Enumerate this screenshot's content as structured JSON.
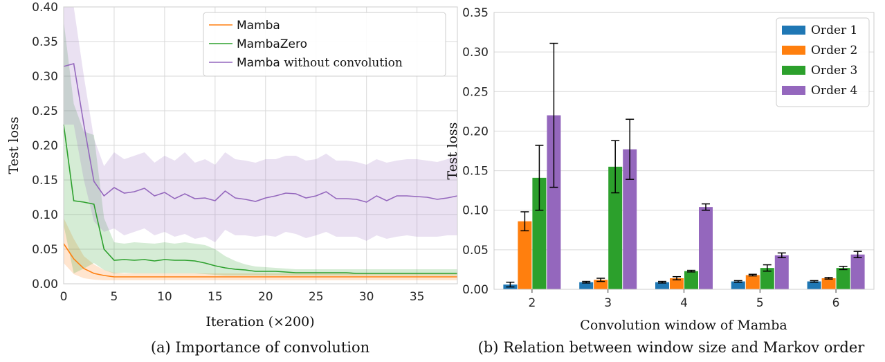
{
  "chart_data": [
    {
      "type": "line",
      "caption": "(a) Importance of convolution",
      "xlabel": "Iteration (×200)",
      "ylabel": "Test loss",
      "xlim": [
        0,
        39
      ],
      "ylim": [
        0,
        0.4
      ],
      "xticks": [
        0,
        5,
        10,
        15,
        20,
        25,
        30,
        35
      ],
      "yticks": [
        0.0,
        0.05,
        0.1,
        0.15,
        0.2,
        0.25,
        0.3,
        0.35,
        0.4
      ],
      "grid": true,
      "legend_position": "top-right",
      "series": [
        {
          "name": "Mamba",
          "name_prefix": "Mamba",
          "name_suffix": "",
          "color": "#ff7f0e",
          "x": [
            0,
            1,
            2,
            3,
            4,
            5,
            6,
            7,
            8,
            9,
            10,
            11,
            12,
            13,
            14,
            15,
            16,
            17,
            18,
            19,
            20,
            21,
            22,
            23,
            24,
            25,
            26,
            27,
            28,
            29,
            30,
            31,
            32,
            33,
            34,
            35,
            36,
            37,
            38,
            39
          ],
          "y": [
            0.058,
            0.036,
            0.022,
            0.015,
            0.012,
            0.01,
            0.01,
            0.01,
            0.01,
            0.01,
            0.01,
            0.01,
            0.01,
            0.01,
            0.01,
            0.01,
            0.01,
            0.01,
            0.01,
            0.01,
            0.01,
            0.01,
            0.01,
            0.01,
            0.01,
            0.01,
            0.01,
            0.01,
            0.01,
            0.01,
            0.01,
            0.01,
            0.01,
            0.01,
            0.01,
            0.01,
            0.01,
            0.01,
            0.01,
            0.01
          ],
          "lower": [
            0.03,
            0.014,
            0.008,
            0.006,
            0.005,
            0.005,
            0.005,
            0.005,
            0.005,
            0.005,
            0.005,
            0.005,
            0.005,
            0.005,
            0.005,
            0.005,
            0.005,
            0.005,
            0.005,
            0.005,
            0.005,
            0.005,
            0.005,
            0.005,
            0.005,
            0.005,
            0.005,
            0.005,
            0.005,
            0.005,
            0.005,
            0.005,
            0.005,
            0.005,
            0.005,
            0.005,
            0.005,
            0.005,
            0.005,
            0.005
          ],
          "upper": [
            0.095,
            0.065,
            0.04,
            0.028,
            0.02,
            0.016,
            0.015,
            0.015,
            0.015,
            0.015,
            0.015,
            0.015,
            0.015,
            0.015,
            0.015,
            0.015,
            0.015,
            0.015,
            0.015,
            0.015,
            0.015,
            0.015,
            0.015,
            0.015,
            0.015,
            0.015,
            0.015,
            0.015,
            0.015,
            0.015,
            0.015,
            0.015,
            0.015,
            0.015,
            0.015,
            0.015,
            0.015,
            0.015,
            0.015,
            0.015
          ]
        },
        {
          "name": "MambaZero",
          "name_prefix": "MambaZero",
          "name_suffix": "",
          "color": "#2ca02c",
          "x": [
            0,
            1,
            2,
            3,
            4,
            5,
            6,
            7,
            8,
            9,
            10,
            11,
            12,
            13,
            14,
            15,
            16,
            17,
            18,
            19,
            20,
            21,
            22,
            23,
            24,
            25,
            26,
            27,
            28,
            29,
            30,
            31,
            32,
            33,
            34,
            35,
            36,
            37,
            38,
            39
          ],
          "y": [
            0.23,
            0.12,
            0.118,
            0.115,
            0.05,
            0.034,
            0.035,
            0.034,
            0.035,
            0.033,
            0.035,
            0.034,
            0.034,
            0.033,
            0.03,
            0.026,
            0.023,
            0.021,
            0.02,
            0.018,
            0.018,
            0.018,
            0.017,
            0.016,
            0.016,
            0.016,
            0.016,
            0.016,
            0.016,
            0.015,
            0.015,
            0.015,
            0.015,
            0.015,
            0.015,
            0.015,
            0.015,
            0.015,
            0.015,
            0.015
          ],
          "lower": [
            0.085,
            0.015,
            0.022,
            0.03,
            0.02,
            0.015,
            0.016,
            0.015,
            0.015,
            0.015,
            0.015,
            0.015,
            0.015,
            0.015,
            0.014,
            0.013,
            0.012,
            0.012,
            0.012,
            0.012,
            0.012,
            0.012,
            0.012,
            0.012,
            0.012,
            0.012,
            0.012,
            0.012,
            0.012,
            0.012,
            0.012,
            0.012,
            0.012,
            0.012,
            0.012,
            0.012,
            0.012,
            0.012,
            0.012,
            0.012
          ],
          "upper": [
            0.38,
            0.26,
            0.22,
            0.215,
            0.095,
            0.06,
            0.058,
            0.06,
            0.059,
            0.058,
            0.06,
            0.058,
            0.06,
            0.058,
            0.056,
            0.05,
            0.04,
            0.033,
            0.028,
            0.025,
            0.024,
            0.023,
            0.022,
            0.021,
            0.021,
            0.021,
            0.021,
            0.021,
            0.021,
            0.021,
            0.021,
            0.021,
            0.021,
            0.021,
            0.021,
            0.021,
            0.021,
            0.021,
            0.021,
            0.021
          ]
        },
        {
          "name": "Mamba without convolution",
          "name_prefix": "Mamba",
          "name_suffix": " without convolution",
          "color": "#9467bd",
          "x": [
            0,
            1,
            2,
            3,
            4,
            5,
            6,
            7,
            8,
            9,
            10,
            11,
            12,
            13,
            14,
            15,
            16,
            17,
            18,
            19,
            20,
            21,
            22,
            23,
            24,
            25,
            26,
            27,
            28,
            29,
            30,
            31,
            32,
            33,
            34,
            35,
            36,
            37,
            38,
            39
          ],
          "y": [
            0.314,
            0.318,
            0.23,
            0.148,
            0.127,
            0.139,
            0.131,
            0.133,
            0.138,
            0.127,
            0.132,
            0.123,
            0.13,
            0.123,
            0.124,
            0.12,
            0.134,
            0.124,
            0.122,
            0.119,
            0.124,
            0.127,
            0.131,
            0.13,
            0.124,
            0.127,
            0.133,
            0.123,
            0.123,
            0.122,
            0.118,
            0.127,
            0.12,
            0.127,
            0.127,
            0.126,
            0.125,
            0.122,
            0.124,
            0.127
          ],
          "lower": [
            0.23,
            0.23,
            0.15,
            0.09,
            0.075,
            0.08,
            0.07,
            0.075,
            0.08,
            0.07,
            0.075,
            0.068,
            0.072,
            0.065,
            0.068,
            0.06,
            0.078,
            0.07,
            0.07,
            0.068,
            0.07,
            0.068,
            0.075,
            0.072,
            0.066,
            0.07,
            0.075,
            0.068,
            0.068,
            0.068,
            0.062,
            0.07,
            0.065,
            0.068,
            0.07,
            0.068,
            0.068,
            0.068,
            0.07,
            0.07
          ],
          "upper": [
            0.4,
            0.4,
            0.3,
            0.21,
            0.17,
            0.19,
            0.18,
            0.185,
            0.19,
            0.175,
            0.185,
            0.178,
            0.19,
            0.175,
            0.18,
            0.172,
            0.19,
            0.18,
            0.178,
            0.175,
            0.18,
            0.18,
            0.185,
            0.185,
            0.178,
            0.18,
            0.188,
            0.178,
            0.178,
            0.176,
            0.172,
            0.18,
            0.175,
            0.178,
            0.18,
            0.18,
            0.178,
            0.176,
            0.18,
            0.185
          ]
        }
      ]
    },
    {
      "type": "bar",
      "caption": "(b) Relation between window size and Markov order",
      "xlabel": "Convolution window of Mamba",
      "ylabel": "Test loss",
      "categories": [
        "2",
        "3",
        "4",
        "5",
        "6"
      ],
      "ylim": [
        0,
        0.35
      ],
      "yticks": [
        0.0,
        0.05,
        0.1,
        0.15,
        0.2,
        0.25,
        0.3,
        0.35
      ],
      "grid": true,
      "legend_position": "top-right",
      "series": [
        {
          "name": "Order 1",
          "color": "#1f77b4",
          "values": [
            0.006,
            0.009,
            0.009,
            0.01,
            0.01
          ],
          "err": [
            0.003,
            0.001,
            0.001,
            0.001,
            0.001
          ]
        },
        {
          "name": "Order 2",
          "color": "#ff7f0e",
          "values": [
            0.086,
            0.012,
            0.014,
            0.018,
            0.014
          ],
          "err": [
            0.012,
            0.002,
            0.002,
            0.001,
            0.001
          ]
        },
        {
          "name": "Order 3",
          "color": "#2ca02c",
          "values": [
            0.141,
            0.155,
            0.023,
            0.027,
            0.027
          ],
          "err": [
            0.041,
            0.033,
            0.001,
            0.004,
            0.002
          ]
        },
        {
          "name": "Order 4",
          "color": "#9467bd",
          "values": [
            0.22,
            0.177,
            0.104,
            0.043,
            0.044
          ],
          "err": [
            0.091,
            0.038,
            0.004,
            0.003,
            0.004
          ]
        }
      ]
    }
  ]
}
